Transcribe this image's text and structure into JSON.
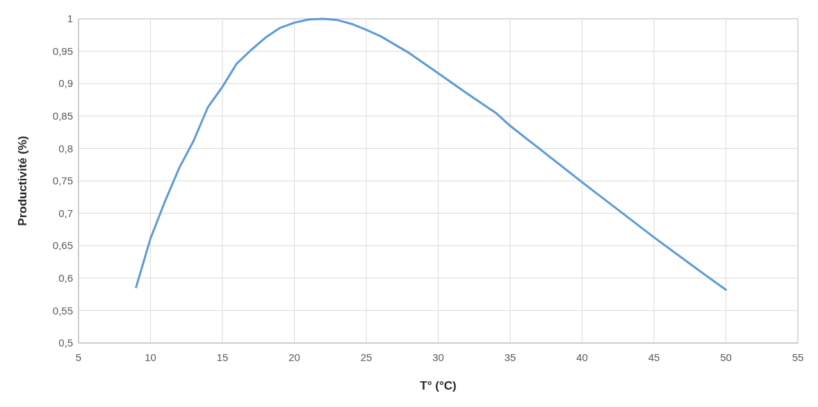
{
  "chart_data": {
    "type": "line",
    "xlabel": "T° (°C)",
    "ylabel": "Productivité (%)",
    "x": [
      9,
      10,
      11,
      12,
      13,
      14,
      15,
      16,
      17,
      18,
      19,
      20,
      21,
      22,
      23,
      24,
      25,
      26,
      28,
      30,
      32,
      34,
      35,
      40,
      45,
      48,
      50
    ],
    "series": [
      {
        "color": "#5b9bd5",
        "values": [
          0.586,
          0.661,
          0.718,
          0.77,
          0.812,
          0.864,
          0.895,
          0.931,
          0.952,
          0.971,
          0.986,
          0.994,
          0.999,
          1.0,
          0.998,
          0.992,
          0.983,
          0.973,
          0.947,
          0.916,
          0.885,
          0.855,
          0.835,
          0.748,
          0.663,
          0.614,
          0.582
        ]
      }
    ],
    "xlim": [
      5,
      55
    ],
    "xticks": [
      5,
      10,
      15,
      20,
      25,
      30,
      35,
      40,
      45,
      50,
      55
    ],
    "ylim": [
      0.5,
      1
    ],
    "yticks": [
      {
        "value": 0.5,
        "label": "0,5"
      },
      {
        "value": 0.55,
        "label": "0,55"
      },
      {
        "value": 0.6,
        "label": "0,6"
      },
      {
        "value": 0.65,
        "label": "0,65"
      },
      {
        "value": 0.7,
        "label": "0,7"
      },
      {
        "value": 0.75,
        "label": "0,75"
      },
      {
        "value": 0.8,
        "label": "0,8"
      },
      {
        "value": 0.85,
        "label": "0,85"
      },
      {
        "value": 0.9,
        "label": "0,9"
      },
      {
        "value": 0.95,
        "label": "0,95"
      },
      {
        "value": 1,
        "label": "1"
      }
    ],
    "grid": true,
    "marker": "none",
    "line_style": "solid"
  }
}
